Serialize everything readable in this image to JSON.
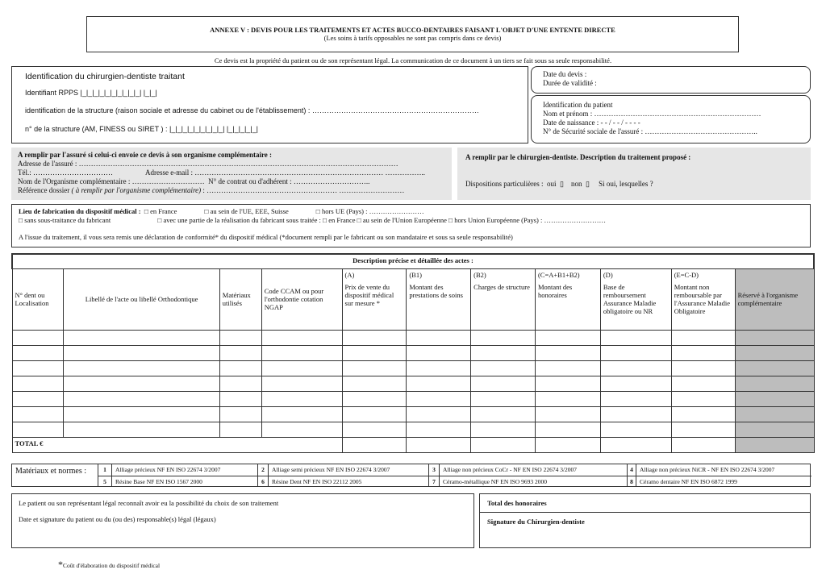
{
  "title": {
    "main": "ANNEXE V : DEVIS POUR LES TRAITEMENTS ET ACTES BUCCO-DENTAIRES FAISANT L'OBJET D'UNE ENTENTE DIRECTE",
    "sub": "(Les soins à tarifs opposables ne sont pas compris dans ce devis)"
  },
  "notice": "Ce devis est la propriété du patient ou de son représentant légal. La communication de ce document à un tiers se fait sous sa seule responsabilité.",
  "dentist": {
    "heading": "Identification du chirurgien-dentiste traitant",
    "rpps": "Identifiant RPPS |_|_|_|_|_|_|_|_|_|_|  |_|_|",
    "structure": "identification de la structure (raison sociale et adresse du cabinet ou de l'établissement) : ……………………………………………………………",
    "structure_no": "n° de la structure (AM, FINESS ou SIRET ) : |_|_|_|_|_|_|_|_|_|  |_|_|_|_|_|"
  },
  "devis": {
    "date": "Date du devis :",
    "validity": "Durée de validité :"
  },
  "patient": {
    "heading": "Identification du patient",
    "name": "Nom et prénom : ……………………………………………………………",
    "birth": "Date de naissance : - - / - - / - - - -",
    "ss": "N° de Sécurité sociale de l'assuré : ……………………………………….."
  },
  "insured": {
    "heading": "A remplir par l'assuré si celui-ci envoie ce devis à son organisme complémentaire :",
    "address": "Adresse de l'assuré : ……………………………………………………………………………………………………………………",
    "tel": "Tél.: ……………………………",
    "email": "Adresse e-mail : …………………………………………………………………… ……………..",
    "org": "Nom de l'Organisme complémentaire : …………………………",
    "contract": "N° de contrat ou d'adhérent : …………………………..",
    "ref_label": "Référence dossier ",
    "ref_italic": "( à remplir par l'organisme complémentaire)",
    "ref_dots": " : ……………………………………………… ………………………"
  },
  "treatment": {
    "heading": "A remplir par le chirurgien-dentiste. Description du traitement proposé :",
    "dispositions": "Dispositions particulières :  oui  ▯    non  ▯     Si oui, lesquelles ?"
  },
  "fabrication": {
    "label": "Lieu de fabrication du dispositif médical :",
    "opt_france": "□ en France",
    "opt_ue": "□ au sein de l'UE, EEE, Suisse",
    "opt_hors": "□ hors UE (Pays) : ……………………",
    "no_sub": "□ sans sous-traitance du fabricant",
    "with_sub": "□ avec une partie de la réalisation du fabricant sous traitée :  □ en France   □ au sein de l'Union Européenne   □ hors Union Européenne (Pays) : ………………………",
    "declaration": "A l'issue du traitement, il vous sera remis une déclaration de conformité* du dispositif médical (*document rempli par le fabricant ou son mandataire et sous sa seule responsabilité)"
  },
  "acts": {
    "title": "Description précise et détaillée des actes :",
    "columns": [
      {
        "code": "",
        "label": "N° dent ou Localisation"
      },
      {
        "code": "",
        "label": "Libellé de l'acte ou libellé Orthodontique"
      },
      {
        "code": "",
        "label": "Matériaux utilisés"
      },
      {
        "code": "",
        "label": "Code CCAM ou pour l'orthodontie cotation NGAP"
      },
      {
        "code": "(A)",
        "label": "Prix de vente du dispositif médical sur mesure *"
      },
      {
        "code": "(B1)",
        "label": "Montant des prestations de soins"
      },
      {
        "code": "(B2)",
        "label": "Charges de structure"
      },
      {
        "code": "(C=A+B1+B2)",
        "label": "Montant des honoraires"
      },
      {
        "code": "(D)",
        "label": "Base de remboursement Assurance Maladie obligatoire ou NR"
      },
      {
        "code": "(E=C-D)",
        "label": "Montant non remboursable par l'Assurance Maladie Obligatoire"
      },
      {
        "code": "",
        "label": "Réservé à l'organisme complémentaire"
      }
    ],
    "total": "TOTAL €"
  },
  "materials": {
    "label": "Matériaux et normes :",
    "items": [
      {
        "n": "1",
        "text": "Alliage précieux NF EN ISO 22674 3/2007"
      },
      {
        "n": "2",
        "text": "Alliage semi précieux NF EN ISO 22674 3/2007"
      },
      {
        "n": "3",
        "text": "Alliage non précieux CoCr - NF EN ISO 22674 3/2007"
      },
      {
        "n": "4",
        "text": "Alliage non précieux NiCR - NF EN ISO 22674 3/2007"
      },
      {
        "n": "5",
        "text": "Résine Base NF EN ISO 1567 2000"
      },
      {
        "n": "6",
        "text": "Résine Dent NF EN ISO 22112 2005"
      },
      {
        "n": "7",
        "text": "Céramo-métallique NF EN ISO 9693 2000"
      },
      {
        "n": "8",
        "text": "Céramo dentaire NF EN ISO 6872 1999"
      }
    ]
  },
  "signature": {
    "choice": "Le patient ou son représentant légal reconnaît avoir eu la possibilité du choix de son traitement",
    "patient_sig": "Date et signature du patient ou du (ou des) responsable(s) légal (légaux)",
    "total_fees": "Total des honoraires",
    "dentist_sig": "Signature du Chirurgien-dentiste"
  },
  "footnote": {
    "mark": "*",
    "text": "Coût d'élaboration du dispositif médical"
  }
}
